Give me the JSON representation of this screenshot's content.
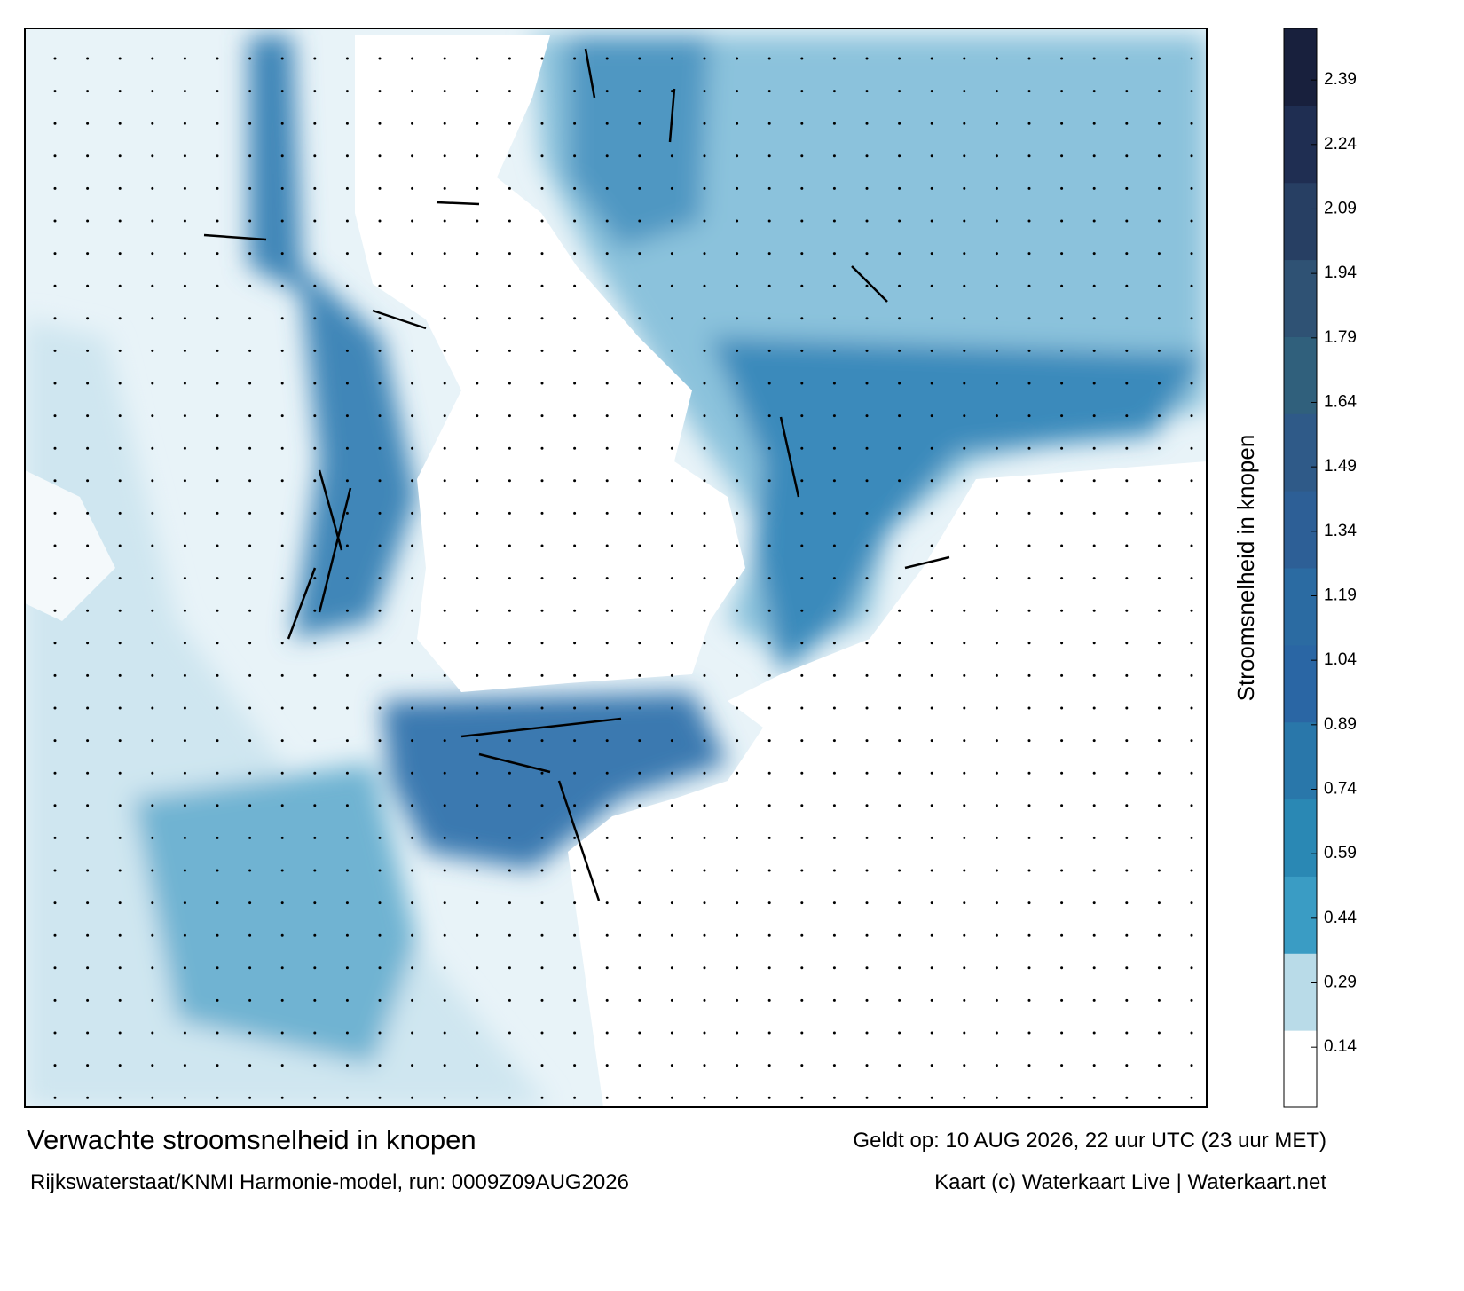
{
  "header": {
    "title": "Verwachte stroomsnelheid in knopen",
    "valid": "Geldt op: 10 AUG 2026, 22 uur UTC (23 uur MET)",
    "source": "Rijkswaterstaat/KNMI Harmonie-model, run: 0009Z09AUG2026",
    "credit": "Kaart (c) Waterkaart Live | Waterkaart.net"
  },
  "colorbar": {
    "label": "Stroomsnelheid in knopen",
    "lim": [
      0,
      2.51
    ],
    "ticks": [
      0.14,
      0.29,
      0.44,
      0.59,
      0.74,
      0.89,
      1.04,
      1.19,
      1.34,
      1.49,
      1.64,
      1.79,
      1.94,
      2.09,
      2.24,
      2.39
    ],
    "colors": [
      "#ffffff",
      "#b9dbe8",
      "#3a9cc4",
      "#2a88b4",
      "#2977aa",
      "#2a66a4",
      "#2b6ba2",
      "#2d5f96",
      "#2f5a88",
      "#30607c",
      "#2f5274",
      "#273f63",
      "#1f2e52",
      "#18203d"
    ]
  }
}
